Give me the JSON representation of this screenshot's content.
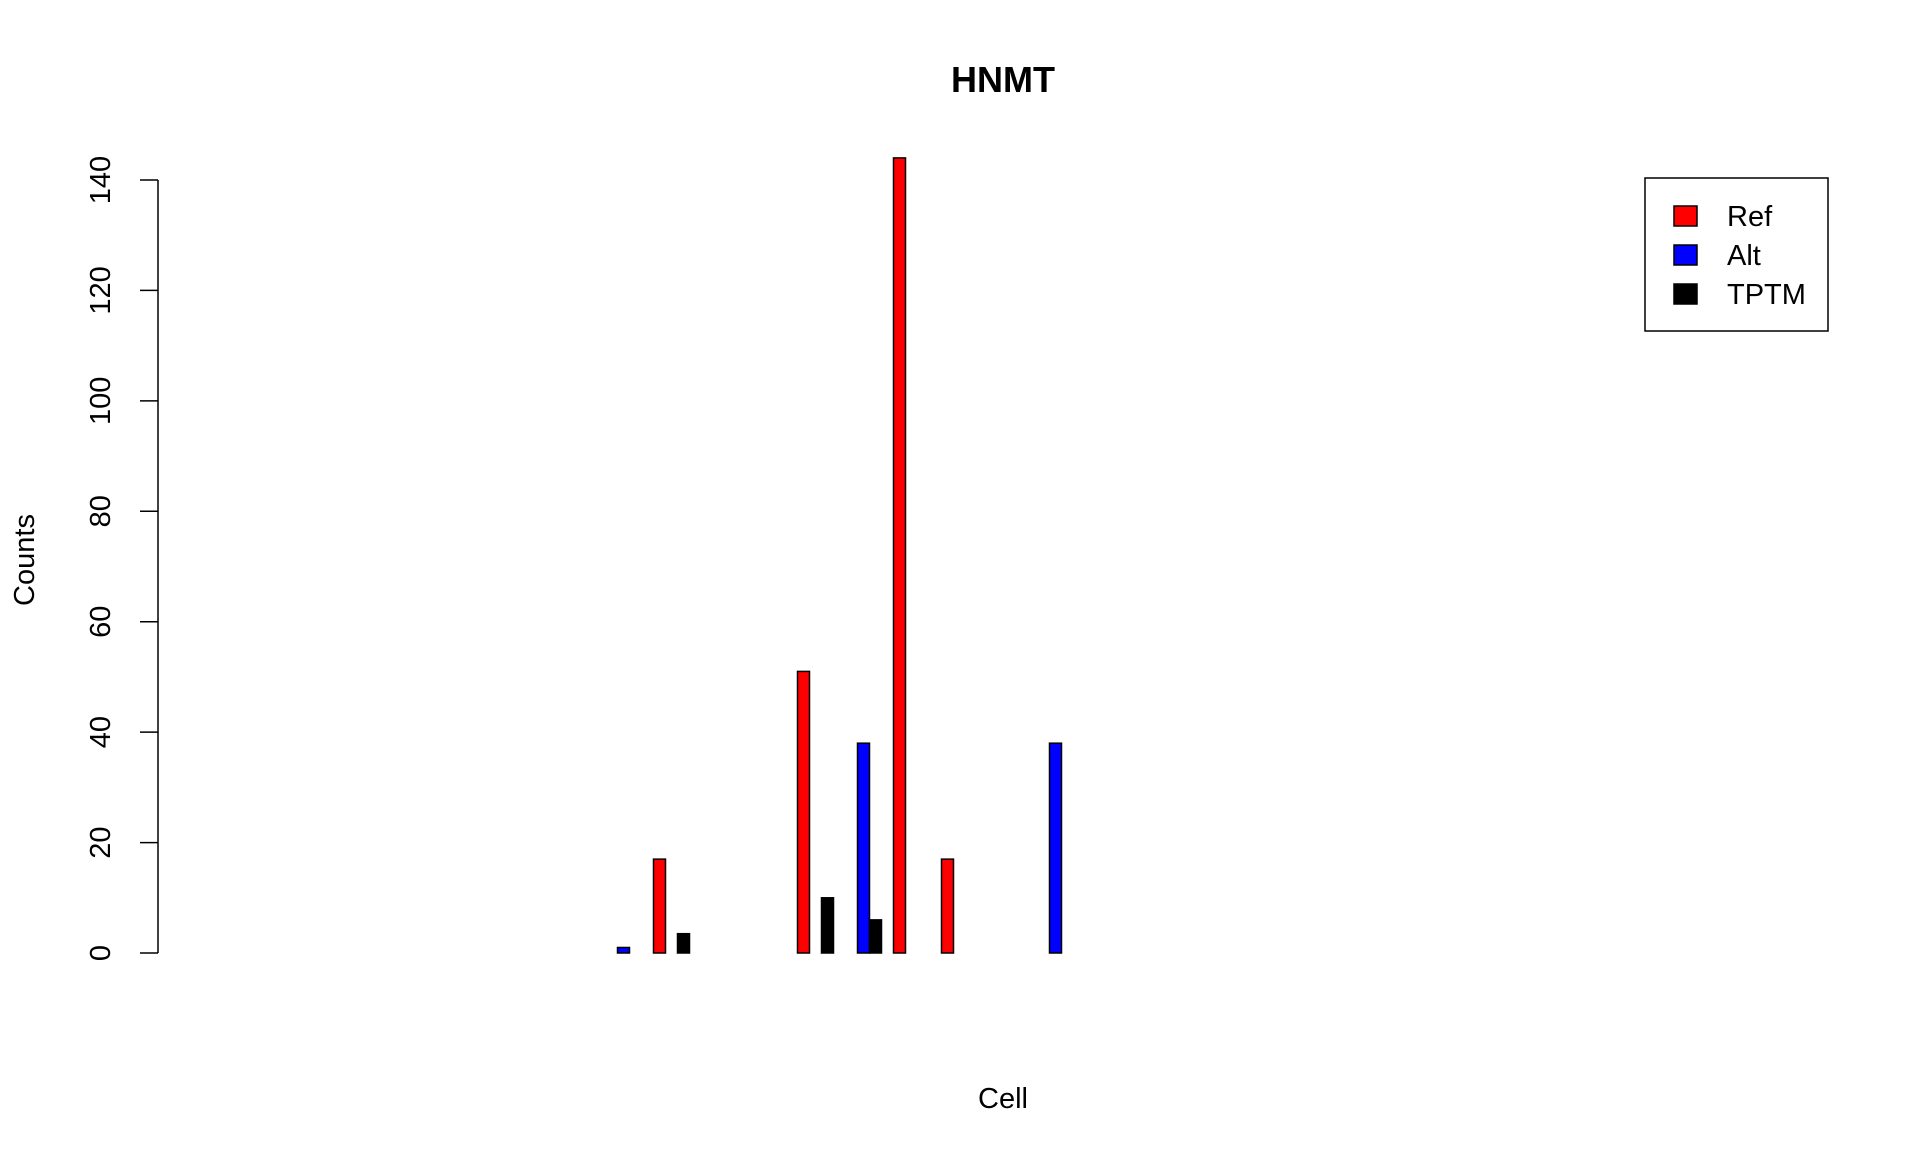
{
  "chart_data": {
    "type": "bar",
    "title": "HNMT",
    "xlabel": "Cell",
    "ylabel": "Counts",
    "ylim": [
      0,
      140
    ],
    "yticks": [
      0,
      20,
      40,
      60,
      80,
      100,
      120,
      140
    ],
    "grid": false,
    "legend_position": "top-right",
    "series": [
      {
        "name": "Ref",
        "color": "#ff0000"
      },
      {
        "name": "Alt",
        "color": "#0000ff"
      },
      {
        "name": "TPTM",
        "color": "#000000"
      }
    ],
    "groups": [
      {
        "values": [
          0,
          0,
          0
        ]
      },
      {
        "values": [
          0,
          0,
          0
        ]
      },
      {
        "values": [
          0,
          0,
          0
        ]
      },
      {
        "values": [
          0,
          0,
          0
        ]
      },
      {
        "values": [
          0,
          0,
          0
        ]
      },
      {
        "values": [
          0,
          0,
          0
        ]
      },
      {
        "values": [
          0,
          1,
          0
        ]
      },
      {
        "values": [
          17,
          0,
          3.5
        ]
      },
      {
        "values": [
          0,
          0,
          0
        ]
      },
      {
        "values": [
          0,
          0,
          0
        ]
      },
      {
        "values": [
          51,
          0,
          10
        ]
      },
      {
        "values": [
          0,
          38,
          6
        ]
      },
      {
        "values": [
          144,
          0,
          0
        ]
      },
      {
        "values": [
          17,
          0,
          0
        ]
      },
      {
        "values": [
          0,
          0,
          0
        ]
      },
      {
        "values": [
          0,
          38,
          0
        ]
      }
    ]
  }
}
